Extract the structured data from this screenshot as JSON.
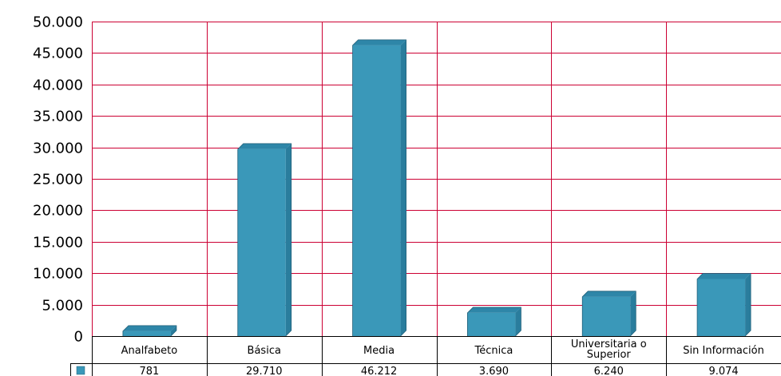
{
  "colors": {
    "bar_front": "#3a98b9",
    "bar_side": "#2a7d9d",
    "bar_top": "#2e86a8",
    "grid": "#cc0033",
    "table_border": "#000000",
    "legend_swatch": "#3a98b9"
  },
  "chart_data": {
    "type": "bar",
    "style": "3d-column with data table below",
    "categories": [
      "Analfabeto",
      "Básica",
      "Media",
      "Técnica",
      "Universitaria o Superior",
      "Sin Información"
    ],
    "category_lines": [
      [
        "Analfabeto"
      ],
      [
        "Básica"
      ],
      [
        "Media"
      ],
      [
        "Técnica"
      ],
      [
        "Universitaria o",
        "Superior"
      ],
      [
        "Sin Información"
      ]
    ],
    "values": [
      781,
      29710,
      46212,
      3690,
      6240,
      9074
    ],
    "value_labels": [
      "781",
      "29.710",
      "46.212",
      "3.690",
      "6.240",
      "9.074"
    ],
    "ylim": [
      0,
      50000
    ],
    "yticks": [
      0,
      5000,
      10000,
      15000,
      20000,
      25000,
      30000,
      35000,
      40000,
      45000,
      50000
    ],
    "ytick_labels": [
      "0",
      "5.000",
      "10.000",
      "15.000",
      "20.000",
      "25.000",
      "30.000",
      "35.000",
      "40.000",
      "45.000",
      "50.000"
    ],
    "grid": true,
    "legend": "data-table-row-swatch"
  }
}
